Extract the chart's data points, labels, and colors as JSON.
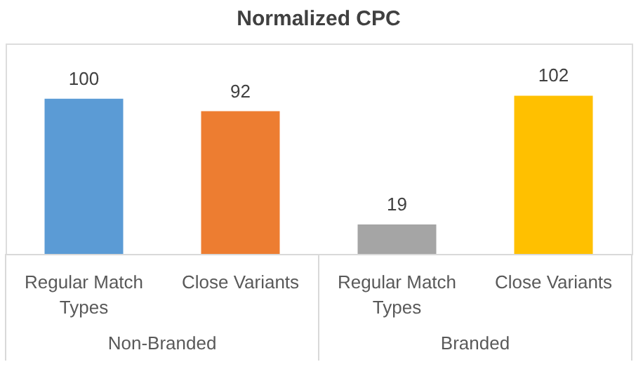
{
  "chart_data": {
    "type": "bar",
    "title": "Normalized CPC",
    "categories": [
      "Regular Match Types",
      "Close Variants",
      "Regular Match Types",
      "Close Variants"
    ],
    "values": [
      100,
      92,
      19,
      102
    ],
    "colors": [
      "#5b9bd5",
      "#ed7d31",
      "#a5a5a5",
      "#ffc000"
    ],
    "data_labels": true,
    "tick_labels": "x",
    "grid": false,
    "legend": false,
    "annotations": [
      "Non-Branded",
      "Branded"
    ]
  }
}
